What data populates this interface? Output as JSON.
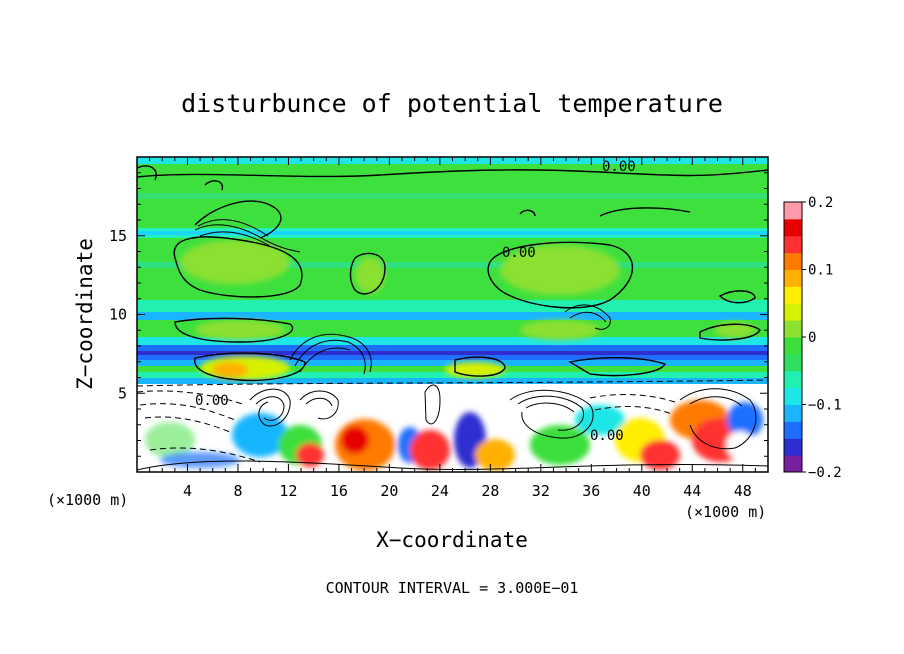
{
  "chart_data": {
    "type": "heatmap",
    "title": "disturbunce of potential temperature",
    "xlabel": "X−coordinate",
    "ylabel": "Z−coordinate",
    "x_unit": "(×1000 m)",
    "x_unit_right": "(×1000 m)",
    "x_range": [
      0,
      50
    ],
    "y_range": [
      0,
      20
    ],
    "x_ticks": [
      4,
      8,
      12,
      16,
      20,
      24,
      28,
      32,
      36,
      40,
      44,
      48
    ],
    "y_ticks": [
      5,
      10,
      15
    ],
    "colorbar": {
      "range": [
        -0.2,
        0.2
      ],
      "ticks": [
        {
          "value": 0.2,
          "label": "0.2"
        },
        {
          "value": 0.1,
          "label": "0.1"
        },
        {
          "value": 0,
          "label": "0"
        },
        {
          "value": -0.1,
          "label": "−0.1"
        },
        {
          "value": -0.2,
          "label": "−0.2"
        }
      ],
      "colors": [
        "#7a1fa0",
        "#2d2dd2",
        "#1f6fff",
        "#19b6ff",
        "#1ee6e6",
        "#22f0b0",
        "#2fe060",
        "#3adf3a",
        "#8be030",
        "#d6f000",
        "#ffee00",
        "#ffb000",
        "#ff7a00",
        "#ff3030",
        "#e80000",
        "#ff9aa8"
      ]
    },
    "contour_labels": [
      "0.00",
      "0.00",
      "0.00",
      "0.00"
    ],
    "footer": "CONTOUR INTERVAL = 3.000E−01"
  }
}
